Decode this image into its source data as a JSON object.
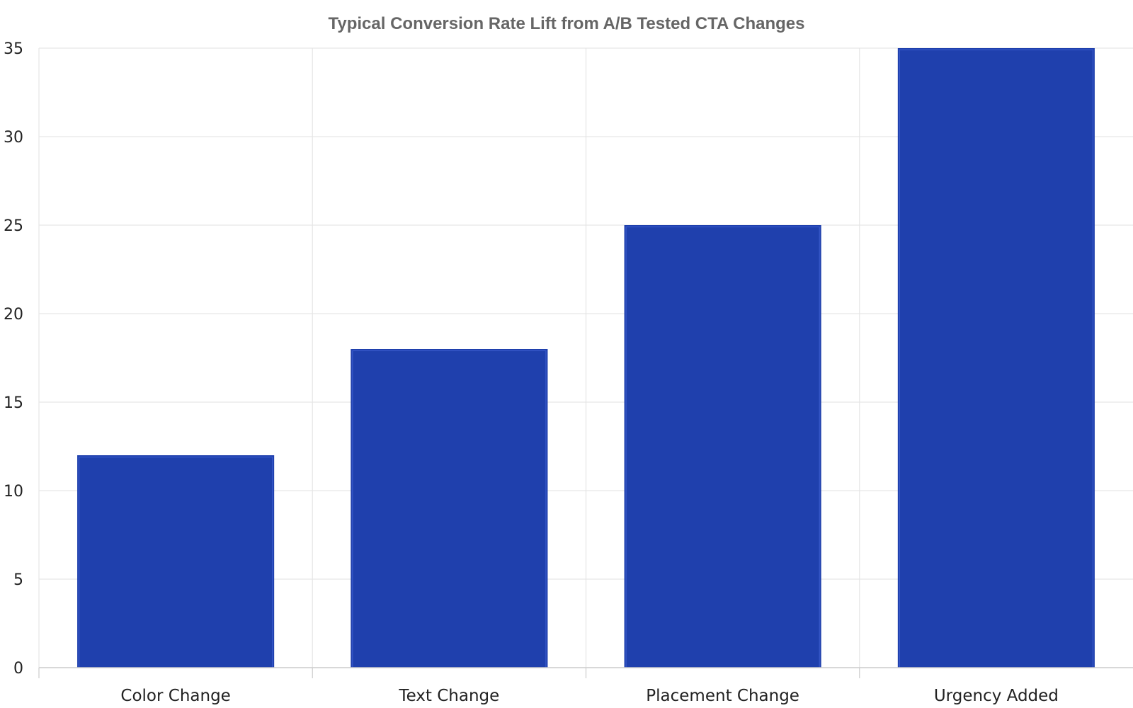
{
  "chart_data": {
    "type": "bar",
    "title": "Typical Conversion Rate Lift from A/B Tested CTA Changes",
    "xlabel": "",
    "ylabel": "",
    "categories": [
      "Color Change",
      "Text Change",
      "Placement Change",
      "Urgency Added"
    ],
    "values": [
      12,
      18,
      25,
      35
    ],
    "ylim": [
      0,
      35
    ],
    "yticks": [
      "0",
      "5",
      "10",
      "15",
      "20",
      "25",
      "30",
      "35"
    ],
    "grid": true,
    "legend": "none",
    "colors": {
      "bar": "#1f40ad",
      "bar_inner_border": "#3d5fd1",
      "grid": "#e6e6e6",
      "axis": "#cccccc",
      "text": "#222222",
      "title": "#666666"
    }
  }
}
